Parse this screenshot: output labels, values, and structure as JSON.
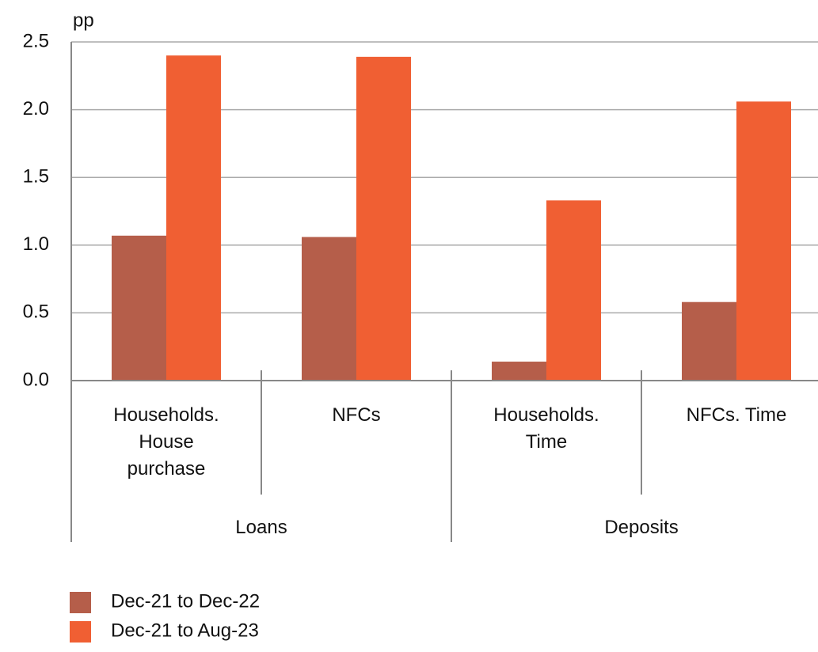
{
  "chart_data": {
    "type": "bar",
    "unit_label": "pp",
    "categories": [
      "Households. House purchase",
      "NFCs",
      "Households. Time",
      "NFCs. Time"
    ],
    "groups": [
      "Loans",
      "Deposits"
    ],
    "series": [
      {
        "name": "Dec-21 to Dec-22",
        "color": "#b55e4a",
        "values": [
          1.07,
          1.06,
          0.14,
          0.58
        ]
      },
      {
        "name": "Dec-21 to Aug-23",
        "color": "#f05f33",
        "values": [
          2.4,
          2.39,
          1.33,
          2.06
        ]
      }
    ],
    "ylim": [
      0,
      2.5
    ],
    "yticks": [
      {
        "value": 0,
        "label": "0.0"
      },
      0.5,
      {
        "value": 1,
        "label": "1.0"
      },
      1.5,
      {
        "value": 2,
        "label": "2.0"
      },
      2.5
    ],
    "grid": true
  }
}
